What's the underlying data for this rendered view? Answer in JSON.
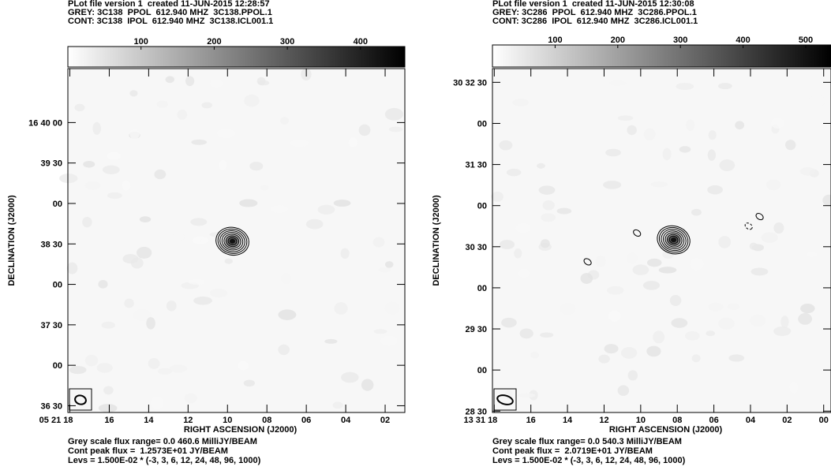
{
  "panels": [
    {
      "header": [
        "PLot file version 1  created 11-JUN-2015 12:28:57",
        "GREY: 3C138  PPOL  612.940 MHZ  3C138.PPOL.1",
        "CONT: 3C138  IPOL  612.940 MHZ  3C138.ICL001.1"
      ],
      "footer": [
        "Grey scale flux range= 0.0 460.6 MilliJY/BEAM",
        "Cont peak flux =  1.2573E+01 JY/BEAM",
        "Levs = 1.500E-02 * (-3, 3, 6, 12, 24, 48, 96, 1000)"
      ],
      "chart_data": {
        "type": "heatmap",
        "subtitle": "Grey scale flux range= 0.0 460.6 MilliJY/BEAM",
        "colorbar": {
          "range": [
            0.0,
            460.6
          ],
          "ticks": [
            "100",
            "200",
            "300",
            "400"
          ],
          "tick_values": [
            100,
            200,
            300,
            400
          ]
        },
        "xlabel": "RIGHT ASCENSION (J2000)",
        "ylabel": "DECLINATION (J2000)",
        "x_ticks": [
          "05 21 18",
          "16",
          "14",
          "12",
          "10",
          "08",
          "06",
          "04",
          "02"
        ],
        "x_tick_seconds": [
          18,
          16,
          14,
          12,
          10,
          8,
          6,
          4,
          2
        ],
        "x_range_seconds": [
          18.1,
          1.0
        ],
        "y_ticks": [
          "36 30",
          "00",
          "37 30",
          "00",
          "38 30",
          "00",
          "39 30",
          "16 40 00"
        ],
        "y_tick_arcsec": [
          0,
          30,
          60,
          90,
          120,
          150,
          180,
          210
        ],
        "y_range_arcsec": [
          -5,
          250
        ],
        "source": {
          "ra_sec": 9.75,
          "dec_arcsec": 122
        },
        "contour_peak_flux_jy_per_beam": 12.573,
        "contour_base_level": 0.015,
        "contour_multipliers": [
          -3,
          3,
          6,
          12,
          24,
          48,
          96,
          1000
        ],
        "contours_drawn": 7,
        "extra_contours": []
      }
    },
    {
      "header": [
        "PLot file version 1  created 11-JUN-2015 12:30:08",
        "GREY: 3C286  PPOL  612.940 MHZ  3C286.PPOL.1",
        "CONT: 3C286  IPOL  612.940 MHZ  3C286.ICL001.1"
      ],
      "footer": [
        "Grey scale flux range= 0.0 540.3 MilliJY/BEAM",
        "Cont peak flux =  2.0719E+01 JY/BEAM",
        "Levs = 1.500E-02 * (-3, 3, 6, 12, 24, 48, 96, 1000)"
      ],
      "chart_data": {
        "type": "heatmap",
        "subtitle": "Grey scale flux range= 0.0 540.3 MilliJY/BEAM",
        "colorbar": {
          "range": [
            0.0,
            540.3
          ],
          "ticks": [
            "100",
            "200",
            "300",
            "400",
            "500"
          ],
          "tick_values": [
            100,
            200,
            300,
            400,
            500
          ]
        },
        "xlabel": "RIGHT ASCENSION (J2000)",
        "ylabel": "DECLINATION (J2000)",
        "x_ticks": [
          "13 31 18",
          "16",
          "14",
          "12",
          "10",
          "08",
          "06",
          "04",
          "02",
          "00"
        ],
        "x_tick_seconds": [
          18,
          16,
          14,
          12,
          10,
          8,
          6,
          4,
          2,
          0
        ],
        "x_range_seconds": [
          18.1,
          -0.4
        ],
        "y_ticks": [
          "28 30",
          "00",
          "29 30",
          "00",
          "30 30",
          "00",
          "31 30",
          "00",
          "30 32 30"
        ],
        "y_tick_arcsec": [
          0,
          30,
          60,
          90,
          120,
          150,
          180,
          210,
          240
        ],
        "y_range_arcsec": [
          -1,
          250
        ],
        "source": {
          "ra_sec": 8.2,
          "dec_arcsec": 125
        },
        "contour_peak_flux_jy_per_beam": 20.719,
        "contour_base_level": 0.015,
        "contour_multipliers": [
          -3,
          3,
          6,
          12,
          24,
          48,
          96,
          1000
        ],
        "contours_drawn": 7,
        "extra_contours": [
          {
            "ra_sec": 12.9,
            "dec_arcsec": 109,
            "dashed": false
          },
          {
            "ra_sec": 10.2,
            "dec_arcsec": 130,
            "dashed": false
          },
          {
            "ra_sec": 4.1,
            "dec_arcsec": 135,
            "dashed": true
          },
          {
            "ra_sec": 3.5,
            "dec_arcsec": 142,
            "dashed": false
          }
        ]
      }
    }
  ]
}
